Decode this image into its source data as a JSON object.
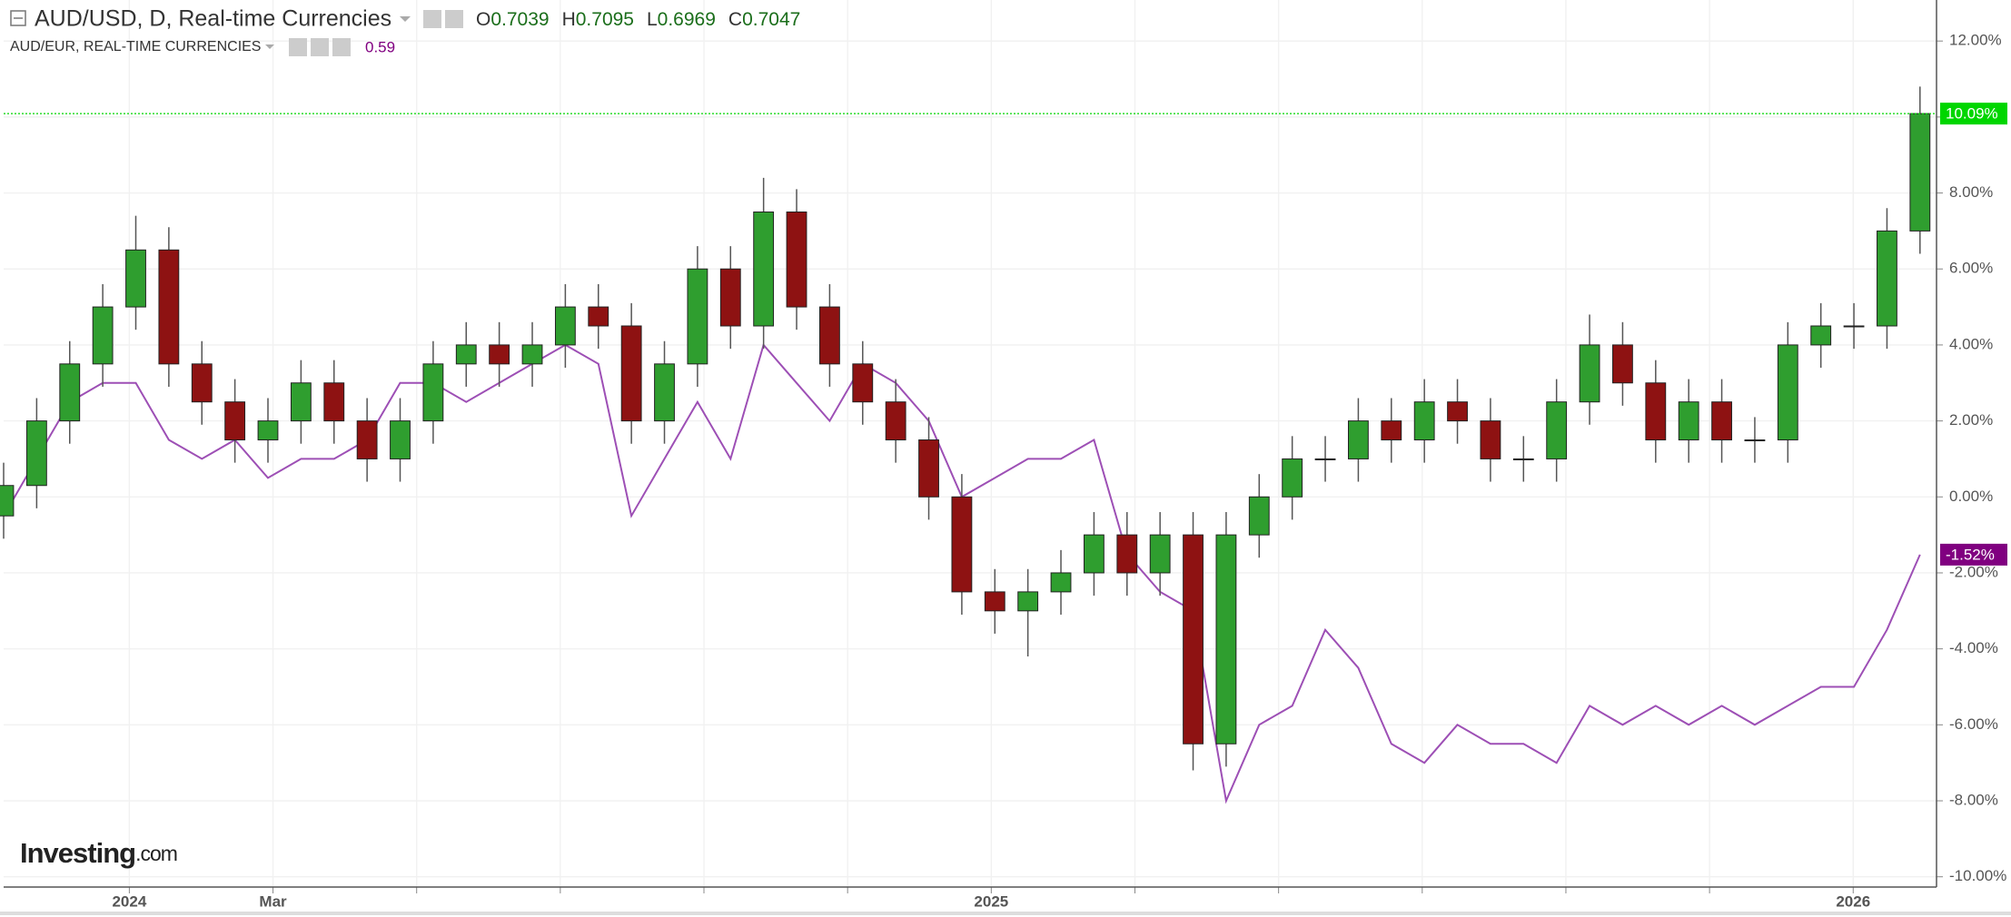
{
  "chart_data": {
    "type": "candlestick",
    "ohlc_header": [
      {
        "label": "O",
        "value": "0.7039"
      },
      {
        "label": "H",
        "value": "0.7095"
      },
      {
        "label": "L",
        "value": "0.6969"
      },
      {
        "label": "C",
        "value": "0.7047"
      }
    ],
    "logo": "Investing",
    "logo_suffix": ".com",
    "x": [
      -1.75,
      -1.29,
      -0.83,
      -0.37,
      0.09,
      0.55,
      1.01,
      1.47,
      1.93,
      2.39,
      2.85,
      3.31,
      3.77,
      4.23,
      4.69,
      5.15,
      5.61,
      6.07,
      6.53,
      6.99,
      7.45,
      7.91,
      8.37,
      8.83,
      9.29,
      9.75,
      10.21,
      10.67,
      11.13,
      11.59,
      12.05,
      12.51,
      12.97,
      13.43,
      13.89,
      14.35,
      14.81,
      15.27,
      15.73,
      16.19,
      16.65,
      17.11,
      17.57,
      18.03,
      18.49,
      18.95,
      19.41,
      19.87,
      20.33,
      20.79,
      21.25,
      21.71,
      22.17,
      22.63,
      23.09,
      23.55,
      24.01,
      24.47,
      24.93
    ],
    "series": [
      {
        "name": "AUD/USD, D, Real-time Currencies",
        "type": "candlestick",
        "color_up": "#2f9e2f",
        "color_down": "#8e1212",
        "last_label": "10.09%",
        "last_color": "#00d600",
        "open": [
          -0.5,
          0.3,
          2.0,
          3.5,
          5.0,
          6.5,
          3.5,
          2.5,
          1.5,
          2.0,
          3.0,
          2.0,
          1.0,
          2.0,
          3.5,
          4.0,
          3.5,
          4.0,
          5.0,
          4.5,
          2.0,
          3.5,
          6.0,
          4.5,
          7.5,
          5.0,
          3.5,
          2.5,
          1.5,
          0.0,
          -2.5,
          -3.0,
          -2.5,
          -2.0,
          -1.0,
          -2.0,
          -1.0,
          -6.5,
          -1.0,
          0.0,
          1.0,
          1.0,
          2.0,
          1.5,
          2.5,
          2.0,
          1.0,
          1.0,
          2.5,
          4.0,
          3.0,
          1.5,
          2.5,
          1.5,
          1.5,
          4.0,
          4.5,
          4.5,
          7.0
        ],
        "high": [
          0.9,
          2.6,
          4.1,
          5.6,
          7.4,
          7.1,
          4.1,
          3.1,
          2.6,
          3.6,
          3.6,
          2.6,
          2.6,
          4.1,
          4.6,
          4.6,
          4.6,
          5.6,
          5.6,
          5.1,
          4.1,
          6.6,
          6.6,
          8.4,
          8.1,
          5.6,
          4.1,
          3.1,
          2.1,
          0.6,
          -1.9,
          -1.9,
          -1.4,
          -0.4,
          -0.4,
          -0.4,
          -0.4,
          -0.4,
          0.6,
          1.6,
          1.6,
          2.6,
          2.6,
          3.1,
          3.1,
          2.6,
          1.6,
          3.1,
          4.8,
          4.6,
          3.6,
          3.1,
          3.1,
          2.1,
          4.6,
          5.1,
          5.1,
          7.6,
          10.8
        ],
        "low": [
          -1.1,
          -0.3,
          1.4,
          2.9,
          4.4,
          2.9,
          1.9,
          0.9,
          0.9,
          1.4,
          1.4,
          0.4,
          0.4,
          1.4,
          2.9,
          2.9,
          2.9,
          3.4,
          3.9,
          1.4,
          1.4,
          2.9,
          3.9,
          3.9,
          4.4,
          2.9,
          1.9,
          0.9,
          -0.6,
          -3.1,
          -3.6,
          -4.2,
          -3.1,
          -2.6,
          -2.6,
          -2.6,
          -7.2,
          -7.1,
          -1.6,
          -0.6,
          0.4,
          0.4,
          0.9,
          0.9,
          1.4,
          0.4,
          0.4,
          0.4,
          1.9,
          2.4,
          0.9,
          0.9,
          0.9,
          0.9,
          0.9,
          3.4,
          3.9,
          3.9,
          6.4
        ],
        "close": [
          0.3,
          2.0,
          3.5,
          5.0,
          6.5,
          3.5,
          2.5,
          1.5,
          2.0,
          3.0,
          2.0,
          1.0,
          2.0,
          3.5,
          4.0,
          3.5,
          4.0,
          5.0,
          4.5,
          2.0,
          3.5,
          6.0,
          4.5,
          7.5,
          5.0,
          3.5,
          2.5,
          1.5,
          0.0,
          -2.5,
          -3.0,
          -2.5,
          -2.0,
          -1.0,
          -2.0,
          -1.0,
          -6.5,
          -1.0,
          0.0,
          1.0,
          1.0,
          2.0,
          1.5,
          2.5,
          2.0,
          1.0,
          1.0,
          2.5,
          4.0,
          3.0,
          1.5,
          2.5,
          1.5,
          1.5,
          4.0,
          4.5,
          4.5,
          7.0,
          10.09
        ]
      },
      {
        "name": "AUD/EUR, REAL-TIME CURRENCIES",
        "type": "line",
        "color": "#9d4fb5",
        "header_value": "0.59",
        "last_label": "-1.52%",
        "last_color": "#800080",
        "values": [
          -0.5,
          1.0,
          2.5,
          3.0,
          3.0,
          1.5,
          1.0,
          1.5,
          0.5,
          1.0,
          1.0,
          1.5,
          3.0,
          3.0,
          2.5,
          3.0,
          3.5,
          4.0,
          3.5,
          -0.5,
          1.0,
          2.5,
          1.0,
          4.0,
          3.0,
          2.0,
          3.5,
          3.0,
          2.0,
          0.0,
          0.5,
          1.0,
          1.0,
          1.5,
          -1.5,
          -2.5,
          -3.0,
          -8.0,
          -6.0,
          -5.5,
          -3.5,
          -4.5,
          -6.5,
          -7.0,
          -6.0,
          -6.5,
          -6.5,
          -7.0,
          -5.5,
          -6.0,
          -5.5,
          -6.0,
          -5.5,
          -6.0,
          -5.5,
          -5.0,
          -5.0,
          -3.5,
          -1.52
        ]
      }
    ],
    "xlim": [
      -1.75,
      25.16
    ],
    "xticks": [
      {
        "value": 0,
        "label": "2024"
      },
      {
        "value": 2,
        "label": "Mar"
      },
      {
        "value": 12,
        "label": "2025"
      },
      {
        "value": 24,
        "label": "2026"
      }
    ],
    "x_minor_ticks": [
      4,
      6,
      8,
      10,
      14,
      16,
      18,
      20,
      22
    ],
    "ylim": [
      -10.27,
      13.08
    ],
    "yticks": [
      {
        "value": 12,
        "label": "12.00%"
      },
      {
        "value": 10,
        "label": "10.00%"
      },
      {
        "value": 8,
        "label": "8.00%"
      },
      {
        "value": 6,
        "label": "6.00%"
      },
      {
        "value": 4,
        "label": "4.00%"
      },
      {
        "value": 2,
        "label": "2.00%"
      },
      {
        "value": 0,
        "label": "0.00%"
      },
      {
        "value": -2,
        "label": "-2.00%"
      },
      {
        "value": -4,
        "label": "-4.00%"
      },
      {
        "value": -6,
        "label": "-6.00%"
      },
      {
        "value": -8,
        "label": "-8.00%"
      },
      {
        "value": -10,
        "label": "-10.00%"
      }
    ],
    "grid": true
  }
}
